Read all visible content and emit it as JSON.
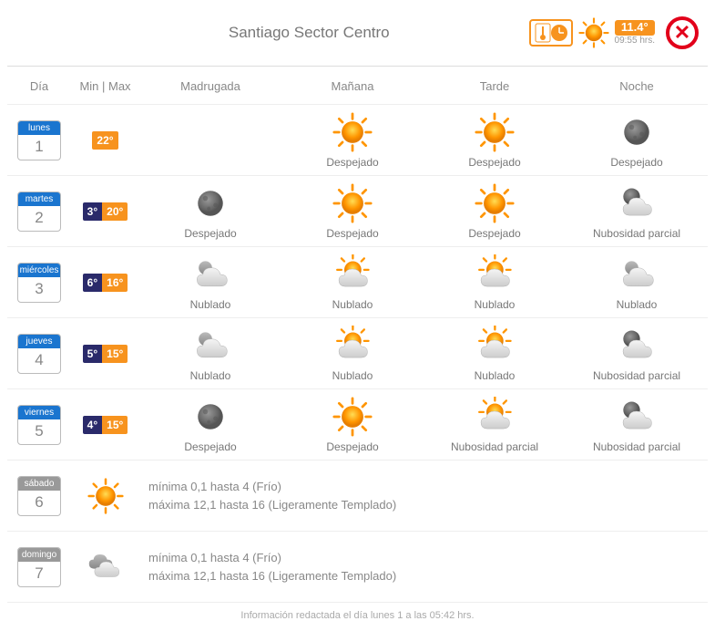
{
  "title": "Santiago Sector Centro",
  "current": {
    "temp": "11.4°",
    "time": "09:55 hrs."
  },
  "columns": {
    "day": "Día",
    "minmax": "Min | Max",
    "p1": "Madrugada",
    "p2": "Mañana",
    "p3": "Tarde",
    "p4": "Noche"
  },
  "days": [
    {
      "name": "lunes",
      "num": "1",
      "nameColor": "blue",
      "min": null,
      "max": "22°",
      "periods": [
        {
          "icon": null,
          "label": null
        },
        {
          "icon": "sun",
          "label": "Despejado"
        },
        {
          "icon": "sun",
          "label": "Despejado"
        },
        {
          "icon": "moon",
          "label": "Despejado"
        }
      ]
    },
    {
      "name": "martes",
      "num": "2",
      "nameColor": "blue",
      "min": "3°",
      "max": "20°",
      "periods": [
        {
          "icon": "moon",
          "label": "Despejado"
        },
        {
          "icon": "sun",
          "label": "Despejado"
        },
        {
          "icon": "sun",
          "label": "Despejado"
        },
        {
          "icon": "mooncloud",
          "label": "Nubosidad parcial"
        }
      ]
    },
    {
      "name": "miércoles",
      "num": "3",
      "nameColor": "blue",
      "min": "6°",
      "max": "16°",
      "periods": [
        {
          "icon": "cloud",
          "label": "Nublado"
        },
        {
          "icon": "suncloud",
          "label": "Nublado"
        },
        {
          "icon": "suncloud",
          "label": "Nublado"
        },
        {
          "icon": "cloud",
          "label": "Nublado"
        }
      ]
    },
    {
      "name": "jueves",
      "num": "4",
      "nameColor": "blue",
      "min": "5°",
      "max": "15°",
      "periods": [
        {
          "icon": "cloud",
          "label": "Nublado"
        },
        {
          "icon": "suncloud",
          "label": "Nublado"
        },
        {
          "icon": "suncloud",
          "label": "Nublado"
        },
        {
          "icon": "mooncloud",
          "label": "Nubosidad parcial"
        }
      ]
    },
    {
      "name": "viernes",
      "num": "5",
      "nameColor": "blue",
      "min": "4°",
      "max": "15°",
      "periods": [
        {
          "icon": "moon",
          "label": "Despejado"
        },
        {
          "icon": "sun",
          "label": "Despejado"
        },
        {
          "icon": "suncloud",
          "label": "Nubosidad parcial"
        },
        {
          "icon": "mooncloud",
          "label": "Nubosidad parcial"
        }
      ]
    },
    {
      "name": "sábado",
      "num": "6",
      "nameColor": "gray",
      "icon": "sun",
      "text1": "mínima 0,1 hasta 4 (Frío)",
      "text2": "máxima 12,1 hasta 16 (Ligeramente Templado)"
    },
    {
      "name": "domingo",
      "num": "7",
      "nameColor": "gray",
      "icon": "clouds",
      "text1": "mínima 0,1 hasta 4 (Frío)",
      "text2": "máxima 12,1 hasta 16 (Ligeramente Templado)"
    }
  ],
  "footer": "Información redactada el día lunes 1 a las 05:42 hrs.",
  "colors": {
    "orange": "#f7931e",
    "blue": "#1a75cf",
    "darkblue": "#2a2a6a",
    "red": "#e2001a",
    "gray": "#999",
    "text": "#777"
  }
}
